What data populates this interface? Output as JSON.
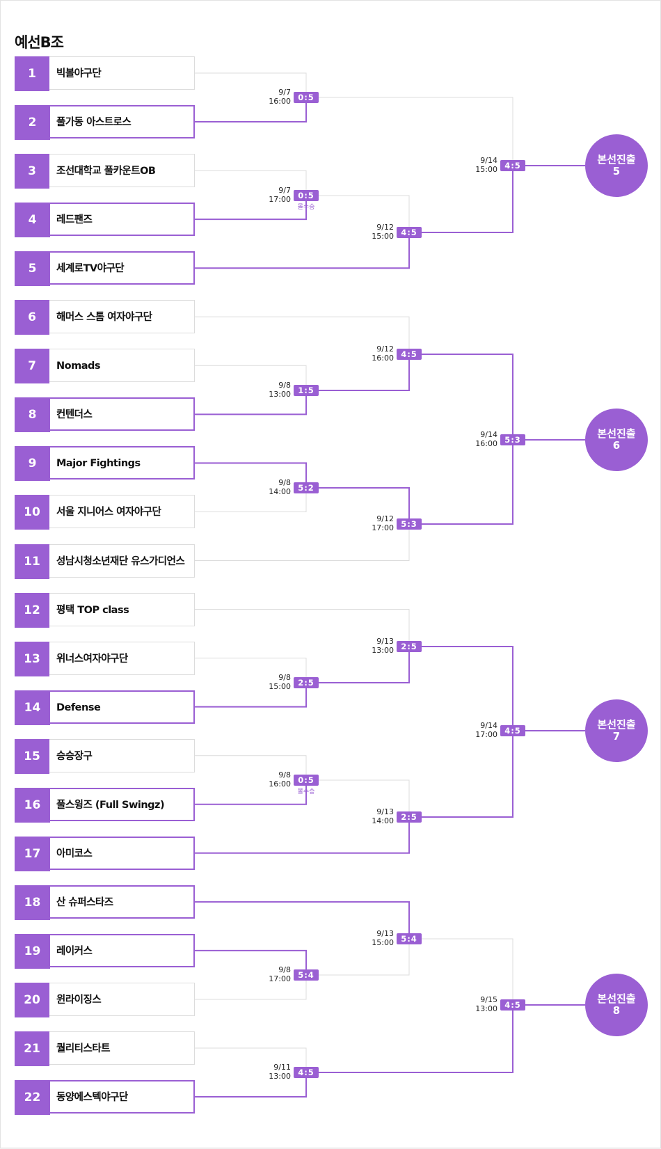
{
  "title": "예선B조",
  "colors": {
    "accent": "#9a5fd3",
    "line_grey": "#dcdcdc"
  },
  "teams": [
    {
      "seed": "1",
      "name": "빅볼야구단",
      "winner": false
    },
    {
      "seed": "2",
      "name": "풀가동 아스트로스",
      "winner": true
    },
    {
      "seed": "3",
      "name": "조선대학교 풀카운트OB",
      "winner": false
    },
    {
      "seed": "4",
      "name": "레드팬즈",
      "winner": true
    },
    {
      "seed": "5",
      "name": "세계로TV야구단",
      "winner": true
    },
    {
      "seed": "6",
      "name": "해머스 스톰 여자야구단",
      "winner": false
    },
    {
      "seed": "7",
      "name": "Nomads",
      "winner": false
    },
    {
      "seed": "8",
      "name": "컨텐더스",
      "winner": true
    },
    {
      "seed": "9",
      "name": "Major Fightings",
      "winner": true
    },
    {
      "seed": "10",
      "name": "서울 지니어스 여자야구단",
      "winner": false
    },
    {
      "seed": "11",
      "name": "성남시청소년재단 유스가디언스",
      "winner": false
    },
    {
      "seed": "12",
      "name": "평택 TOP class",
      "winner": false
    },
    {
      "seed": "13",
      "name": "위너스여자야구단",
      "winner": false
    },
    {
      "seed": "14",
      "name": "Defense",
      "winner": true
    },
    {
      "seed": "15",
      "name": "승승장구",
      "winner": false
    },
    {
      "seed": "16",
      "name": "풀스윙즈 (Full Swingz)",
      "winner": true
    },
    {
      "seed": "17",
      "name": "아미코스",
      "winner": true
    },
    {
      "seed": "18",
      "name": "산 슈퍼스타즈",
      "winner": true
    },
    {
      "seed": "19",
      "name": "레이커스",
      "winner": true
    },
    {
      "seed": "20",
      "name": "윈라이징스",
      "winner": false
    },
    {
      "seed": "21",
      "name": "퀄리티스타트",
      "winner": false
    },
    {
      "seed": "22",
      "name": "동양에스텍야구단",
      "winner": true
    }
  ],
  "matches": [
    {
      "id": "m1",
      "date": "9/7",
      "time": "16:00",
      "score": "0:5",
      "note": ""
    },
    {
      "id": "m2",
      "date": "9/7",
      "time": "17:00",
      "score": "0:5",
      "note": "몰수승"
    },
    {
      "id": "m3",
      "date": "9/12",
      "time": "15:00",
      "score": "4:5",
      "note": ""
    },
    {
      "id": "m4",
      "date": "9/14",
      "time": "15:00",
      "score": "4:5",
      "note": ""
    },
    {
      "id": "m5",
      "date": "9/8",
      "time": "13:00",
      "score": "1:5",
      "note": ""
    },
    {
      "id": "m6",
      "date": "9/12",
      "time": "16:00",
      "score": "4:5",
      "note": ""
    },
    {
      "id": "m7",
      "date": "9/8",
      "time": "14:00",
      "score": "5:2",
      "note": ""
    },
    {
      "id": "m8",
      "date": "9/12",
      "time": "17:00",
      "score": "5:3",
      "note": ""
    },
    {
      "id": "m9",
      "date": "9/14",
      "time": "16:00",
      "score": "5:3",
      "note": ""
    },
    {
      "id": "m10",
      "date": "9/8",
      "time": "15:00",
      "score": "2:5",
      "note": ""
    },
    {
      "id": "m11",
      "date": "9/13",
      "time": "13:00",
      "score": "2:5",
      "note": ""
    },
    {
      "id": "m12",
      "date": "9/8",
      "time": "16:00",
      "score": "0:5",
      "note": "몰수승"
    },
    {
      "id": "m13",
      "date": "9/13",
      "time": "14:00",
      "score": "2:5",
      "note": ""
    },
    {
      "id": "m14",
      "date": "9/14",
      "time": "17:00",
      "score": "4:5",
      "note": ""
    },
    {
      "id": "m15",
      "date": "9/8",
      "time": "17:00",
      "score": "5:4",
      "note": ""
    },
    {
      "id": "m16",
      "date": "9/13",
      "time": "15:00",
      "score": "5:4",
      "note": ""
    },
    {
      "id": "m17",
      "date": "9/11",
      "time": "13:00",
      "score": "4:5",
      "note": ""
    },
    {
      "id": "m18",
      "date": "9/15",
      "time": "13:00",
      "score": "4:5",
      "note": ""
    }
  ],
  "advance": [
    {
      "label": "본선진출",
      "num": "5"
    },
    {
      "label": "본선진출",
      "num": "6"
    },
    {
      "label": "본선진출",
      "num": "7"
    },
    {
      "label": "본선진출",
      "num": "8"
    }
  ]
}
